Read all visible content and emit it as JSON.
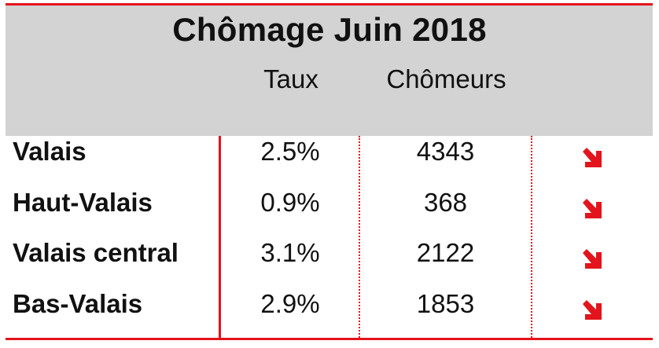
{
  "title": "Chômage Juin 2018",
  "columns": {
    "rate": "Taux",
    "count": "Chômeurs"
  },
  "rows": [
    {
      "region": "Valais",
      "rate": "2.5%",
      "count": "4343",
      "trend": "down-right-arrow-icon"
    },
    {
      "region": "Haut-Valais",
      "rate": "0.9%",
      "count": "368",
      "trend": "down-right-arrow-icon"
    },
    {
      "region": "Valais central",
      "rate": "3.1%",
      "count": "2122",
      "trend": "down-right-arrow-icon"
    },
    {
      "region": "Bas-Valais",
      "rate": "2.9%",
      "count": "1853",
      "trend": "down-right-arrow-icon"
    }
  ],
  "colors": {
    "accent": "#e3141b",
    "header_bg": "#d3d3d3",
    "text": "#111111"
  }
}
